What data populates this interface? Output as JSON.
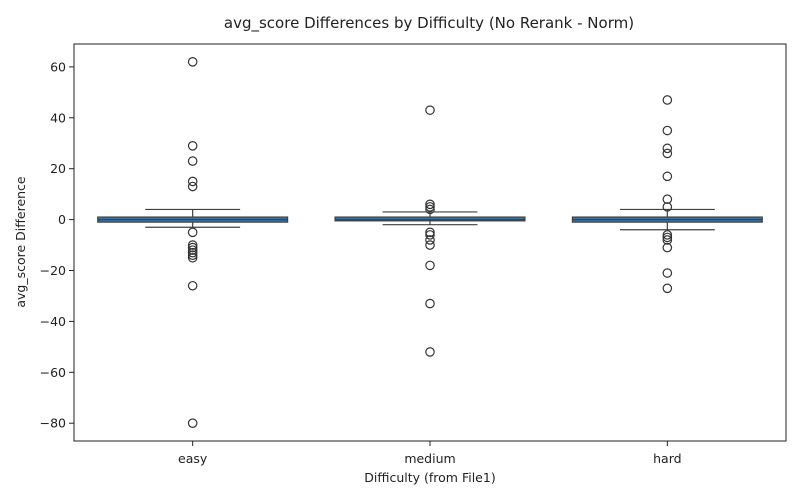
{
  "chart_data": {
    "type": "box",
    "title": "avg_score Differences by Difficulty (No Rerank - Norm)",
    "xlabel": "Difficulty (from File1)",
    "ylabel": "avg_score Difference",
    "ylim": [
      -87,
      69
    ],
    "yticks": [
      60,
      40,
      20,
      0,
      -20,
      -40,
      -60,
      -80
    ],
    "ytick_labels": [
      "60",
      "40",
      "20",
      "0",
      "−20",
      "−40",
      "−60",
      "−80"
    ],
    "grid": false,
    "legend": "none",
    "box_color": "#3a75a8",
    "line_color": "#404040",
    "categories": [
      "easy",
      "medium",
      "hard"
    ],
    "boxes": [
      {
        "category": "easy",
        "q1": -1,
        "median": 0,
        "q3": 1,
        "whisker_low": -3,
        "whisker_high": 4,
        "outliers": [
          62,
          29,
          23,
          15,
          13,
          -5,
          -10,
          -11,
          -12,
          -13,
          -14,
          -15,
          -26,
          -80
        ]
      },
      {
        "category": "medium",
        "q1": -0.5,
        "median": 0,
        "q3": 1,
        "whisker_low": -2,
        "whisker_high": 3,
        "outliers": [
          43,
          6,
          5,
          4,
          -5,
          -6,
          -8,
          -10,
          -18,
          -33,
          -52
        ]
      },
      {
        "category": "hard",
        "q1": -1,
        "median": 0,
        "q3": 1,
        "whisker_low": -4,
        "whisker_high": 4,
        "outliers": [
          47,
          35,
          28,
          26,
          17,
          8,
          5,
          -6,
          -7,
          -8,
          -11,
          -21,
          -27
        ]
      }
    ]
  }
}
